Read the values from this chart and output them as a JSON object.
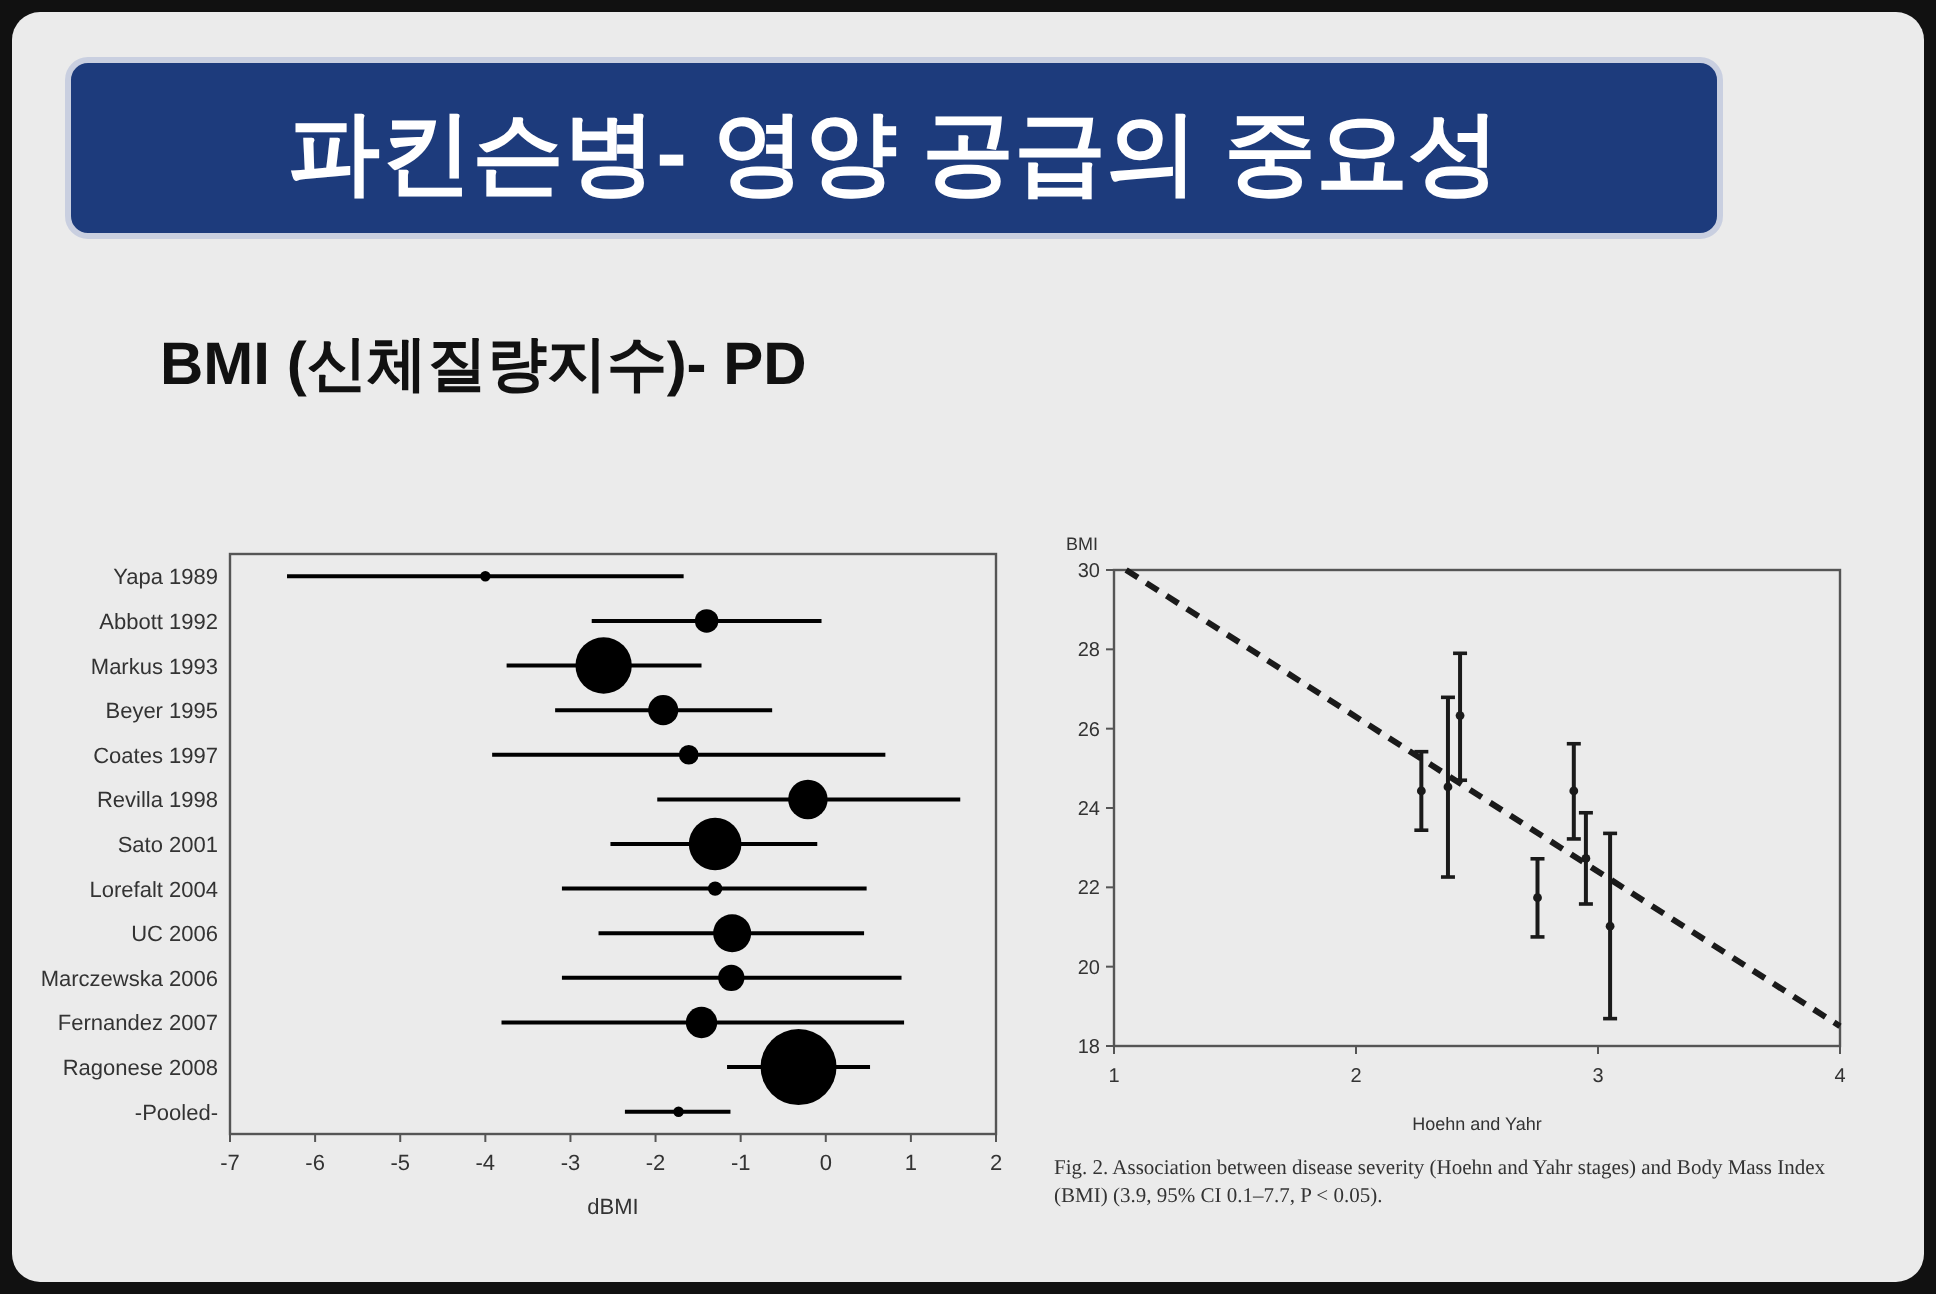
{
  "chart_data": [
    {
      "type": "bubble",
      "title": "파킨슨병- 영양 공급의 중요성",
      "subtitle": "BMI (신체질량지수)- PD",
      "orientation": "horizontal",
      "xlabel": "dBMI",
      "categories": [
        "Yapa 1989",
        "Abbott 1992",
        "Markus 1993",
        "Beyer 1995",
        "Coates 1997",
        "Revilla 1998",
        "Sato 2001",
        "Lorefalt 2004",
        "UC 2006",
        "Marczewska 2006",
        "Fernandez 2007",
        "Ragonese 2008",
        "-Pooled-"
      ],
      "values": [
        -4.0,
        -1.4,
        -2.61,
        -1.91,
        -1.61,
        -0.21,
        -1.3,
        -1.3,
        -1.1,
        -1.11,
        -1.46,
        -0.32,
        -1.73
      ],
      "errors": [
        [
          -6.33,
          -1.67
        ],
        [
          -2.75,
          -0.05
        ],
        [
          -3.75,
          -1.46
        ],
        [
          -3.18,
          -0.63
        ],
        [
          -3.92,
          0.7
        ],
        [
          -1.98,
          1.58
        ],
        [
          -2.53,
          -0.1
        ],
        [
          -3.1,
          0.48
        ],
        [
          -2.67,
          0.45
        ],
        [
          -3.1,
          0.89
        ],
        [
          -3.81,
          0.92
        ],
        [
          -1.16,
          0.52
        ],
        [
          -2.36,
          -1.12
        ]
      ],
      "sizes": [
        0.019,
        0.096,
        0.55,
        0.157,
        0.067,
        0.27,
        0.48,
        0.036,
        0.25,
        0.12,
        0.17,
        1,
        0.019
      ],
      "color": "#000000",
      "xlim": [
        -7,
        2
      ],
      "xticks": [
        -7,
        -6,
        -5,
        -4,
        -3,
        -2,
        -1,
        0,
        1,
        2
      ],
      "grid": false
    },
    {
      "type": "scatter",
      "xlabel": "Hoehn and Yahr",
      "ylabel": "BMI",
      "xlim": [
        1,
        4
      ],
      "xticks": [
        1,
        2,
        3,
        4
      ],
      "ylim": [
        18,
        30
      ],
      "yticks": [
        18,
        20,
        22,
        24,
        26,
        28,
        30
      ],
      "grid": false,
      "annotations": [
        "Fig. 2. Association between disease severity (Hoehn and Yahr stages) and Body Mass Index (BMI) (3.9, 95% CI 0.1–7.7, P < 0.05)."
      ],
      "series": [
        {
          "type": "scatter",
          "color": "#1a1a1a",
          "x": [
            2.27,
            2.38,
            2.43,
            2.75,
            2.9,
            2.95,
            3.05
          ],
          "values": [
            24.43,
            24.53,
            26.33,
            21.74,
            24.43,
            22.73,
            21.02
          ],
          "errors": [
            [
              23.44,
              25.42
            ],
            [
              22.26,
              26.79
            ],
            [
              24.7,
              27.9
            ],
            [
              20.75,
              22.72
            ],
            [
              23.22,
              25.62
            ],
            [
              21.58,
              23.88
            ],
            [
              18.69,
              23.36
            ]
          ]
        },
        {
          "type": "line",
          "color": "#1a1a1a",
          "line_style": "dashed",
          "x": [
            1.05,
            4
          ],
          "values": [
            30,
            18.5
          ]
        }
      ]
    }
  ]
}
